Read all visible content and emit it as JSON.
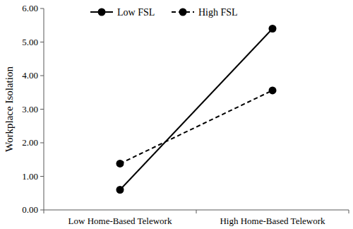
{
  "chart_data": {
    "type": "line",
    "y_label": "Workplace Isolation",
    "categories": [
      "Low Home-Based Telework",
      "High Home-Based Telework"
    ],
    "series": [
      {
        "name": "Low FSL",
        "color": "#000000",
        "values": [
          0.6,
          5.4
        ],
        "marker": "circle",
        "line_style": "solid"
      },
      {
        "name": "High FSL",
        "color": "#000000",
        "values": [
          1.38,
          3.56
        ],
        "marker": "circle",
        "line_style": "dashed"
      }
    ],
    "ylim": [
      0,
      6
    ],
    "yticks": [
      {
        "value": 0,
        "label": "0.00"
      },
      {
        "value": 1,
        "label": "1.00"
      },
      {
        "value": 2,
        "label": "2.00"
      },
      {
        "value": 3,
        "label": "3.00"
      },
      {
        "value": 4,
        "label": "4.00"
      },
      {
        "value": 5,
        "label": "5.00"
      },
      {
        "value": 6,
        "label": "6.00"
      }
    ],
    "grid": false,
    "legend": "top"
  }
}
